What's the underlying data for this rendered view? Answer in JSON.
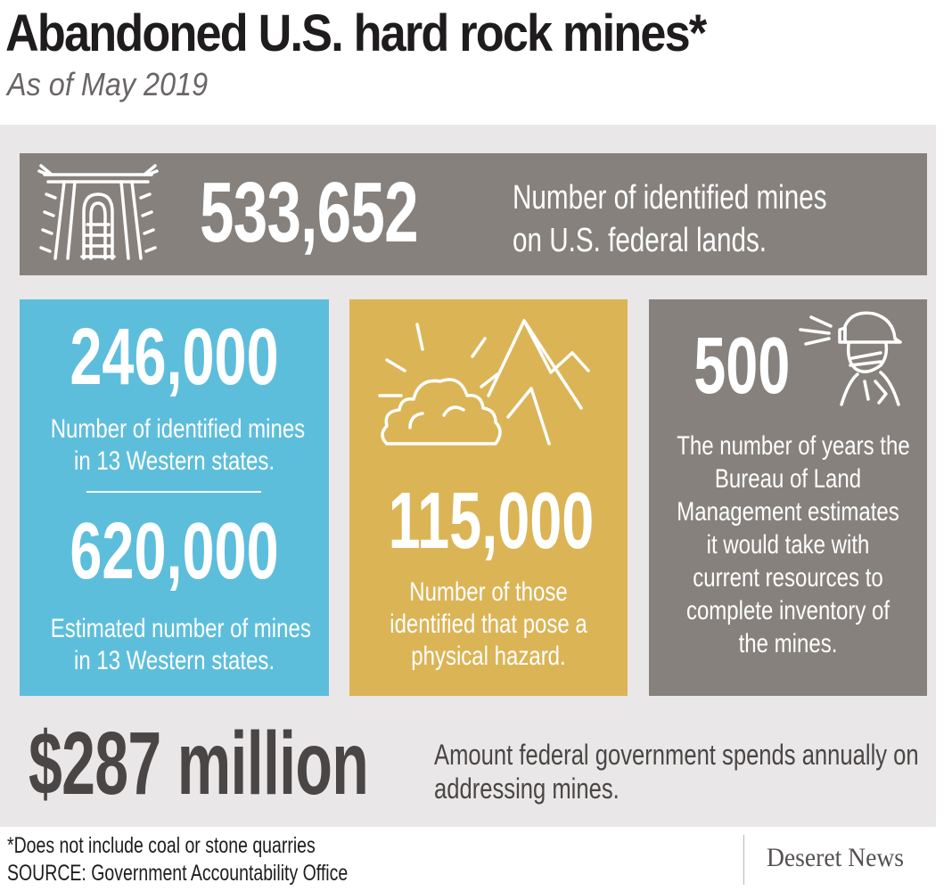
{
  "header": {
    "title": "Abandoned U.S. hard rock mines*",
    "subtitle": "As of May 2019"
  },
  "stats": {
    "federal": {
      "value": "533,652",
      "desc_line1": "Number of identified mines",
      "desc_line2": "on U.S. federal lands.",
      "icon": "mine-entrance-icon"
    },
    "identified_west": {
      "value": "246,000",
      "desc_line1": "Number of identified mines",
      "desc_line2": "in 13 Western states."
    },
    "estimated_west": {
      "value": "620,000",
      "desc_line1": "Estimated number of mines",
      "desc_line2": "in 13 Western states."
    },
    "hazard": {
      "value": "115,000",
      "desc_line1": "Number of those",
      "desc_line2": "identified that pose a",
      "desc_line3": "physical hazard.",
      "icon": "collapsing-mountain-icon"
    },
    "years": {
      "value": "500",
      "desc_lines": [
        "The number of years the",
        "Bureau of Land",
        "Management estimates",
        "it would take with",
        "current resources to",
        "complete inventory of",
        "the mines."
      ],
      "icon": "miner-with-headlamp-icon"
    },
    "spending": {
      "value": "$287 million",
      "desc_line1": "Amount federal government spends annually on",
      "desc_line2": "addressing mines."
    }
  },
  "footer": {
    "note": "*Does not include coal or stone quarries",
    "source": "SOURCE: Government Accountability Office",
    "logo": "Deseret News"
  },
  "colors": {
    "gray": "#86817d",
    "blue": "#5dbedc",
    "gold": "#dbb456",
    "panel": "#e9e7e7"
  }
}
